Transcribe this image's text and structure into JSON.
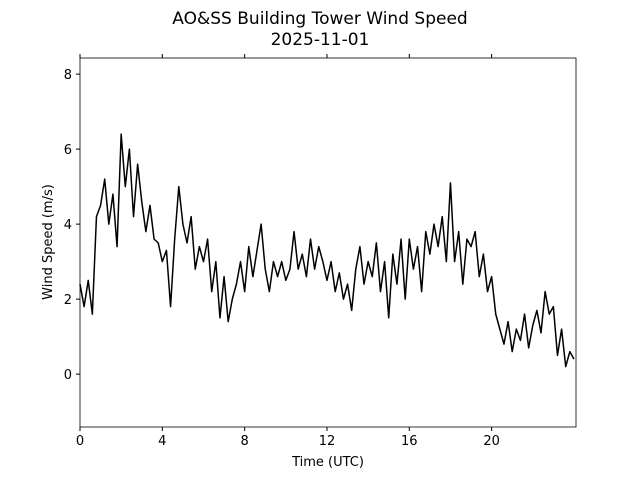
{
  "chart_data": {
    "type": "line",
    "title": "AO&SS Building Tower Wind Speed",
    "subtitle": "2025-11-01",
    "x_label": "Time (UTC)",
    "y_label": "Wind Speed (m/s)",
    "xlim": [
      0,
      24.1
    ],
    "ylim": [
      -1.41,
      8.43
    ],
    "xticks": [
      0,
      4,
      8,
      12,
      16,
      20
    ],
    "yticks": [
      0,
      2,
      4,
      6,
      8
    ],
    "series": [
      {
        "name": "Wind Speed",
        "color": "#000000",
        "x": [
          0,
          0.2,
          0.4,
          0.6,
          0.8,
          1,
          1.2,
          1.4,
          1.6,
          1.8,
          2,
          2.2,
          2.4,
          2.6,
          2.8,
          3,
          3.2,
          3.4,
          3.6,
          3.8,
          4,
          4.2,
          4.4,
          4.6,
          4.8,
          5,
          5.2,
          5.4,
          5.6,
          5.8,
          6,
          6.2,
          6.4,
          6.6,
          6.8,
          7,
          7.2,
          7.4,
          7.6,
          7.8,
          8,
          8.2,
          8.4,
          8.6,
          8.8,
          9,
          9.2,
          9.4,
          9.6,
          9.8,
          10,
          10.2,
          10.4,
          10.6,
          10.8,
          11,
          11.2,
          11.4,
          11.6,
          11.8,
          12,
          12.2,
          12.4,
          12.6,
          12.8,
          13,
          13.2,
          13.4,
          13.6,
          13.8,
          14,
          14.2,
          14.4,
          14.6,
          14.8,
          15,
          15.2,
          15.4,
          15.6,
          15.8,
          16,
          16.2,
          16.4,
          16.6,
          16.8,
          17,
          17.2,
          17.4,
          17.6,
          17.8,
          18,
          18.2,
          18.4,
          18.6,
          18.8,
          19,
          19.2,
          19.4,
          19.6,
          19.8,
          20,
          20.2,
          20.4,
          20.6,
          20.8,
          21,
          21.2,
          21.4,
          21.6,
          21.8,
          22,
          22.2,
          22.4,
          22.6,
          22.8,
          23,
          23.2,
          23.4,
          23.6,
          23.8,
          24
        ],
        "values": [
          2.4,
          1.8,
          2.5,
          1.6,
          4.2,
          4.5,
          5.2,
          4.0,
          4.8,
          3.4,
          6.4,
          5.0,
          6.0,
          4.2,
          5.6,
          4.6,
          3.8,
          4.5,
          3.6,
          3.5,
          3.0,
          3.3,
          1.8,
          3.6,
          5.0,
          4.0,
          3.5,
          4.2,
          2.8,
          3.4,
          3.0,
          3.6,
          2.2,
          3.0,
          1.5,
          2.6,
          1.4,
          2.0,
          2.4,
          3.0,
          2.2,
          3.4,
          2.6,
          3.3,
          4.0,
          2.8,
          2.2,
          3.0,
          2.6,
          3.0,
          2.5,
          2.8,
          3.8,
          2.8,
          3.2,
          2.6,
          3.6,
          2.8,
          3.4,
          3.0,
          2.5,
          3.0,
          2.2,
          2.7,
          2.0,
          2.4,
          1.7,
          2.8,
          3.4,
          2.4,
          3.0,
          2.6,
          3.5,
          2.2,
          3.0,
          1.5,
          3.2,
          2.4,
          3.6,
          2.0,
          3.6,
          2.8,
          3.4,
          2.2,
          3.8,
          3.2,
          4.0,
          3.4,
          4.2,
          3.0,
          5.1,
          3.0,
          3.8,
          2.4,
          3.6,
          3.4,
          3.8,
          2.6,
          3.2,
          2.2,
          2.6,
          1.6,
          1.2,
          0.8,
          1.4,
          0.6,
          1.2,
          0.9,
          1.6,
          0.7,
          1.3,
          1.7,
          1.1,
          2.2,
          1.6,
          1.8,
          0.5,
          1.2,
          0.2,
          0.6,
          0.4
        ]
      }
    ]
  }
}
